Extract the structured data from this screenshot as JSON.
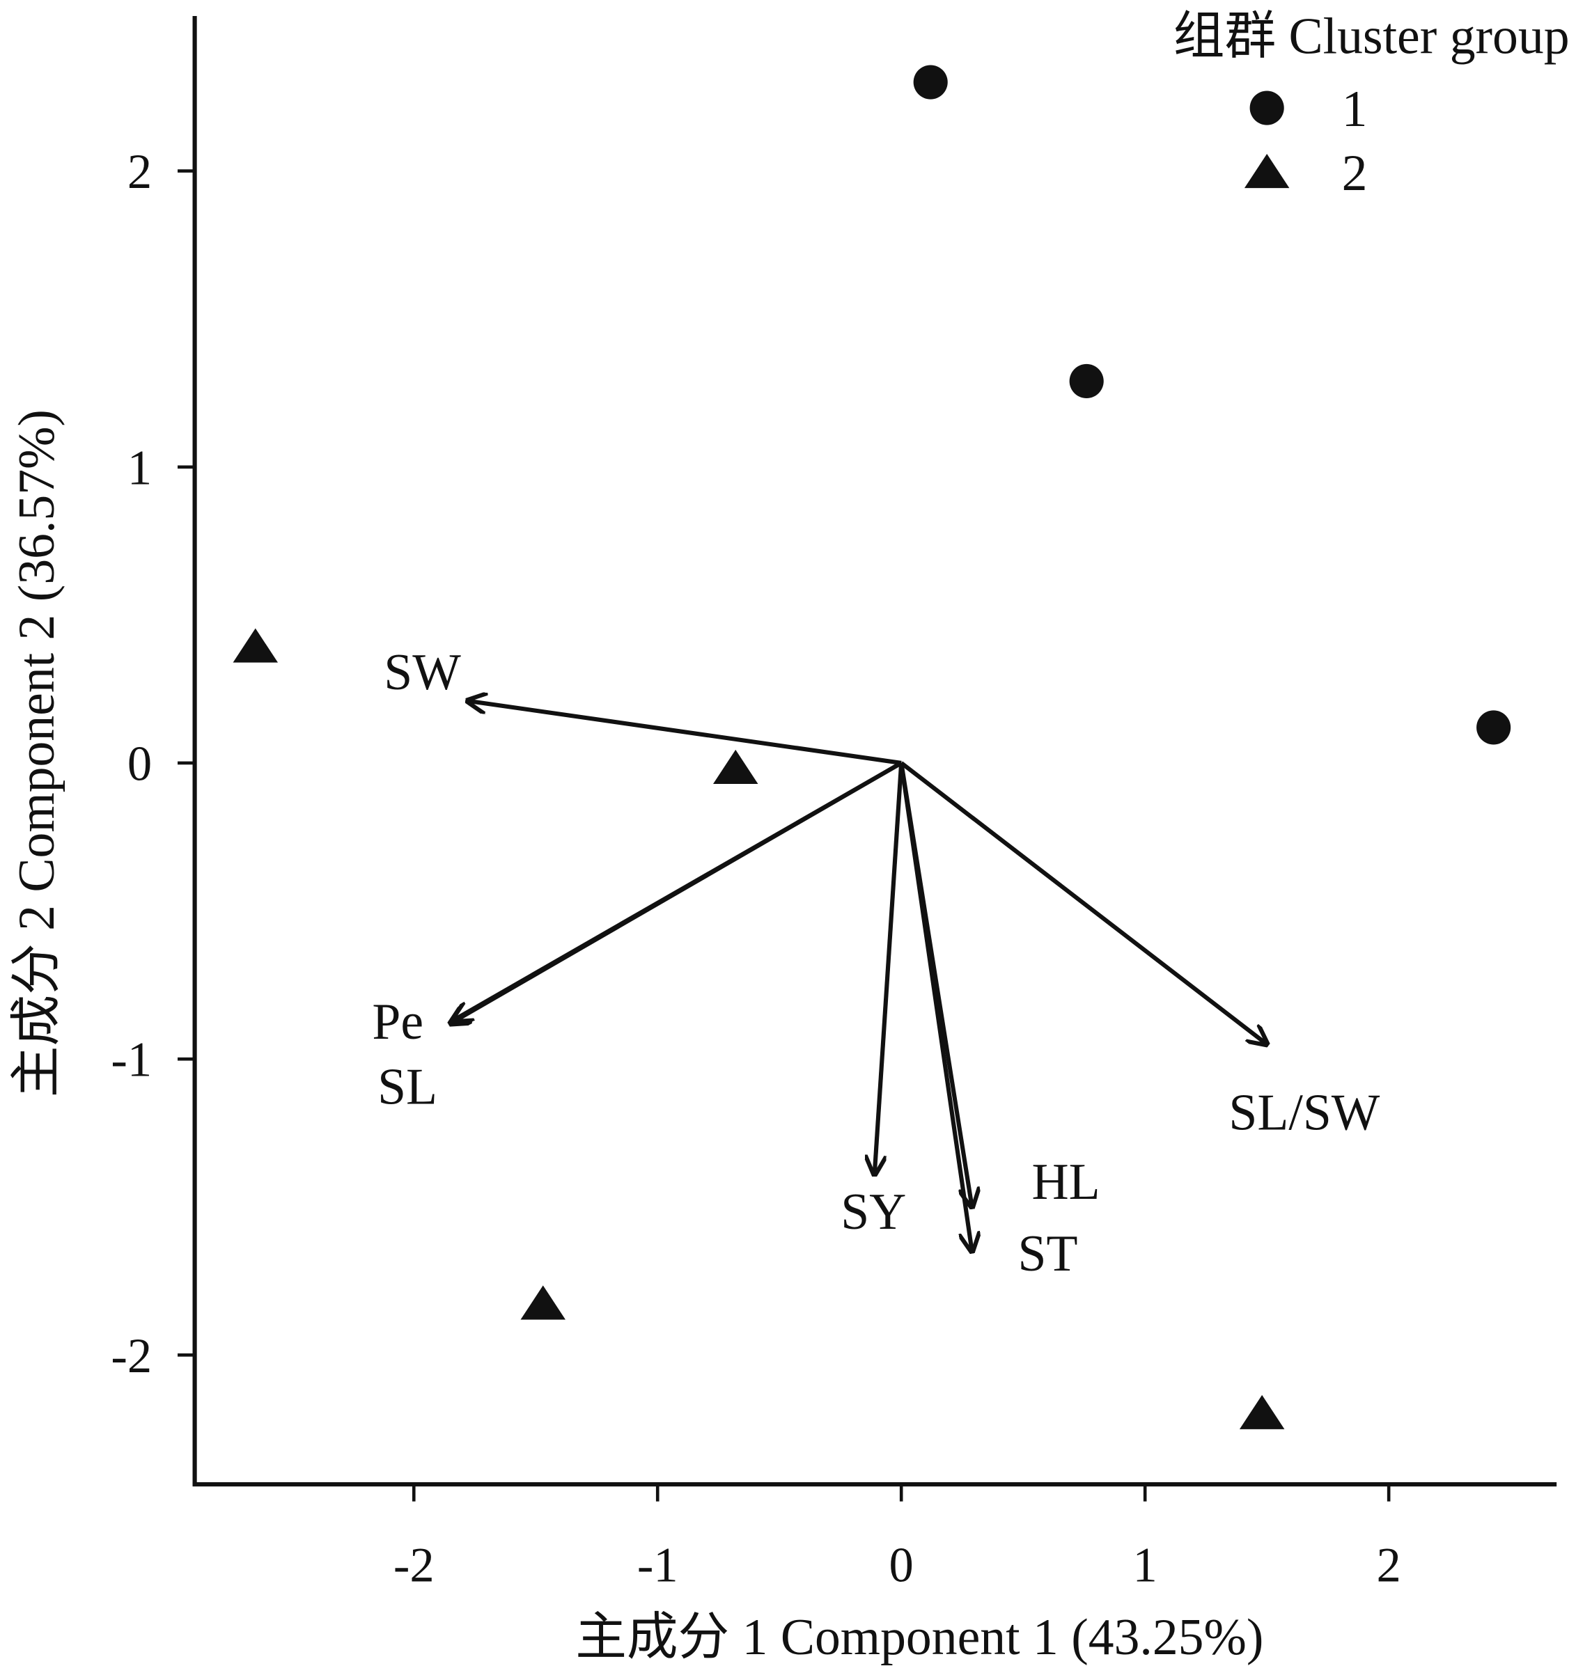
{
  "chart_data": {
    "type": "scatter",
    "subtype": "pca-biplot",
    "xlabel": "主成分 1 Component 1 (43.25%)",
    "ylabel": "主成分 2 Component 2 (36.57%)",
    "xlim": [
      -2.91,
      2.68
    ],
    "ylim": [
      -2.44,
      2.52
    ],
    "xticks": [
      -2,
      -1,
      0,
      1,
      2
    ],
    "xtick_labels": [
      "-2",
      "-1",
      "0",
      "1",
      "2"
    ],
    "yticks": [
      -2,
      -1,
      0,
      1,
      2
    ],
    "ytick_labels": [
      "-2",
      "-1",
      "0",
      "1",
      "2"
    ],
    "grid": false,
    "legend": {
      "title": "组群 Cluster group",
      "placement": "top-right",
      "entries": [
        {
          "label": "1",
          "marker": "circle"
        },
        {
          "label": "2",
          "marker": "triangle"
        }
      ]
    },
    "series": [
      {
        "name": "1",
        "marker": "circle",
        "points": [
          [
            0.12,
            2.3
          ],
          [
            0.76,
            1.29
          ],
          [
            2.43,
            0.12
          ]
        ]
      },
      {
        "name": "2",
        "marker": "triangle",
        "points": [
          [
            -2.65,
            0.39
          ],
          [
            -0.68,
            -0.02
          ],
          [
            -1.47,
            -1.83
          ],
          [
            1.48,
            -2.2
          ]
        ]
      }
    ],
    "loadings": [
      {
        "label": "SW",
        "x": -1.78,
        "y": 0.21
      },
      {
        "label": "Pe",
        "x": -1.85,
        "y": -0.88
      },
      {
        "label": "SL",
        "x": -1.84,
        "y": -0.87
      },
      {
        "label": "SY",
        "x": -0.11,
        "y": -1.39
      },
      {
        "label": "HL",
        "x": 0.29,
        "y": -1.5
      },
      {
        "label": "ST",
        "x": 0.29,
        "y": -1.65
      },
      {
        "label": "SL/SW",
        "x": 1.5,
        "y": -0.95
      }
    ],
    "color": "#111111"
  }
}
